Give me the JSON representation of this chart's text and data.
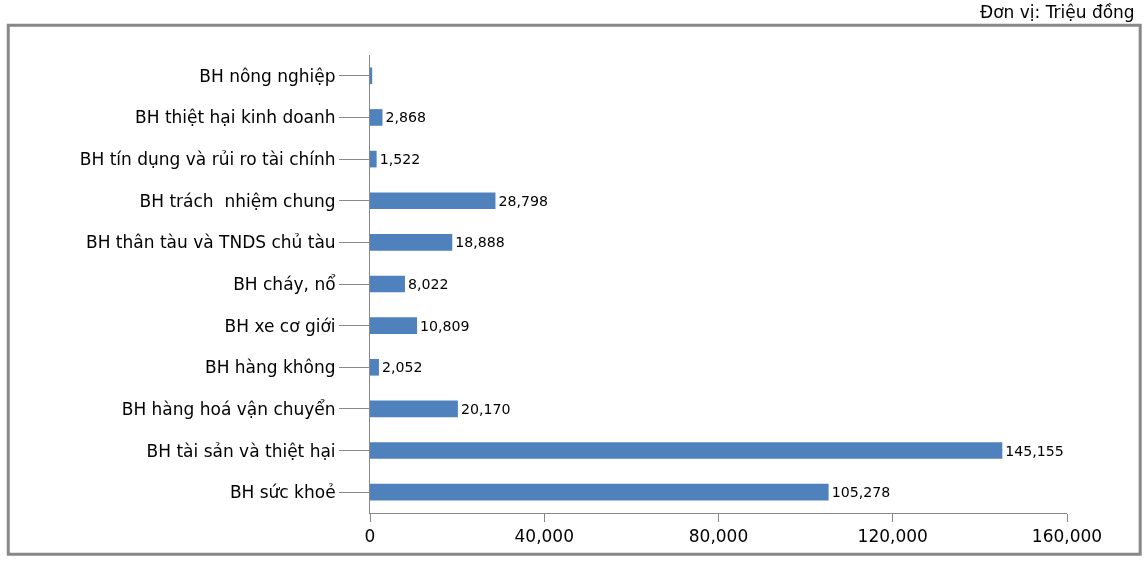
{
  "chart_data": {
    "type": "bar",
    "orientation": "horizontal",
    "annotations": [
      "Đơn vị: Triệu đồng"
    ],
    "categories": [
      "BH nông nghiệp",
      "BH thiệt hại kinh doanh",
      "BH tín dụng và rủi ro tài chính",
      "BH trách  nhiệm chung",
      "BH thân tàu và TNDS chủ tàu",
      "BH cháy, nổ",
      "BH xe cơ giới",
      "BH hàng không",
      "BH hàng hoá vận chuyển",
      "BH tài sản và thiệt hại",
      "BH sức khoẻ"
    ],
    "values": [
      500,
      2868,
      1522,
      28798,
      18888,
      8022,
      10809,
      2052,
      20170,
      145155,
      105278
    ],
    "value_labels": [
      null,
      "2,868",
      "1,522",
      "28,798",
      "18,888",
      "8,022",
      "10,809",
      "2,052",
      "20,170",
      "145,155",
      "105,278"
    ],
    "color": "#4f81bd",
    "xlim": [
      0,
      160000
    ],
    "xticks": [
      0,
      {
        "value": 40000,
        "label": "40,000"
      },
      {
        "value": 80000,
        "label": "80,000"
      },
      {
        "value": 120000,
        "label": "120,000"
      },
      {
        "value": 160000,
        "label": "160,000"
      }
    ],
    "legend": false
  }
}
